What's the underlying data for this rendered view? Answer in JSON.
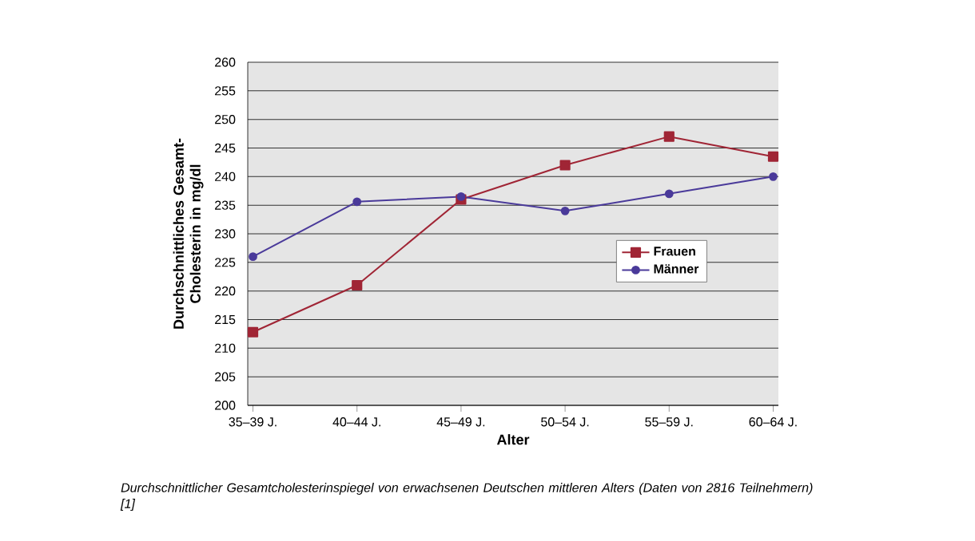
{
  "chart_data": {
    "type": "line",
    "xlabel": "Alter",
    "ylabel": "Durchschnittliches Gesamt-Cholesterin in mg/dl",
    "categories": [
      "35–39 J.",
      "40–44 J.",
      "45–49 J.",
      "50–54 J.",
      "55–59 J.",
      "60–64 J."
    ],
    "series": [
      {
        "name": "Frauen",
        "color": "#a02535",
        "marker": "square",
        "values": [
          212.8,
          221,
          236,
          242,
          247,
          243.5
        ]
      },
      {
        "name": "Männer",
        "color": "#4a3a9a",
        "marker": "circle",
        "values": [
          226,
          235.6,
          236.5,
          234,
          237,
          240
        ]
      }
    ],
    "ylim": [
      200,
      260
    ],
    "yticks": [
      200,
      205,
      210,
      215,
      220,
      225,
      230,
      235,
      240,
      245,
      250,
      255,
      260
    ],
    "grid": "y",
    "legend": "right",
    "line_style": "solid",
    "annotations": [
      "*Durchschnittlicher Gesamtcholesterinspiegel von erwachsenen Deutschen mittleren Alters (Daten von 2816 Teilnehmern) [1]*"
    ]
  }
}
